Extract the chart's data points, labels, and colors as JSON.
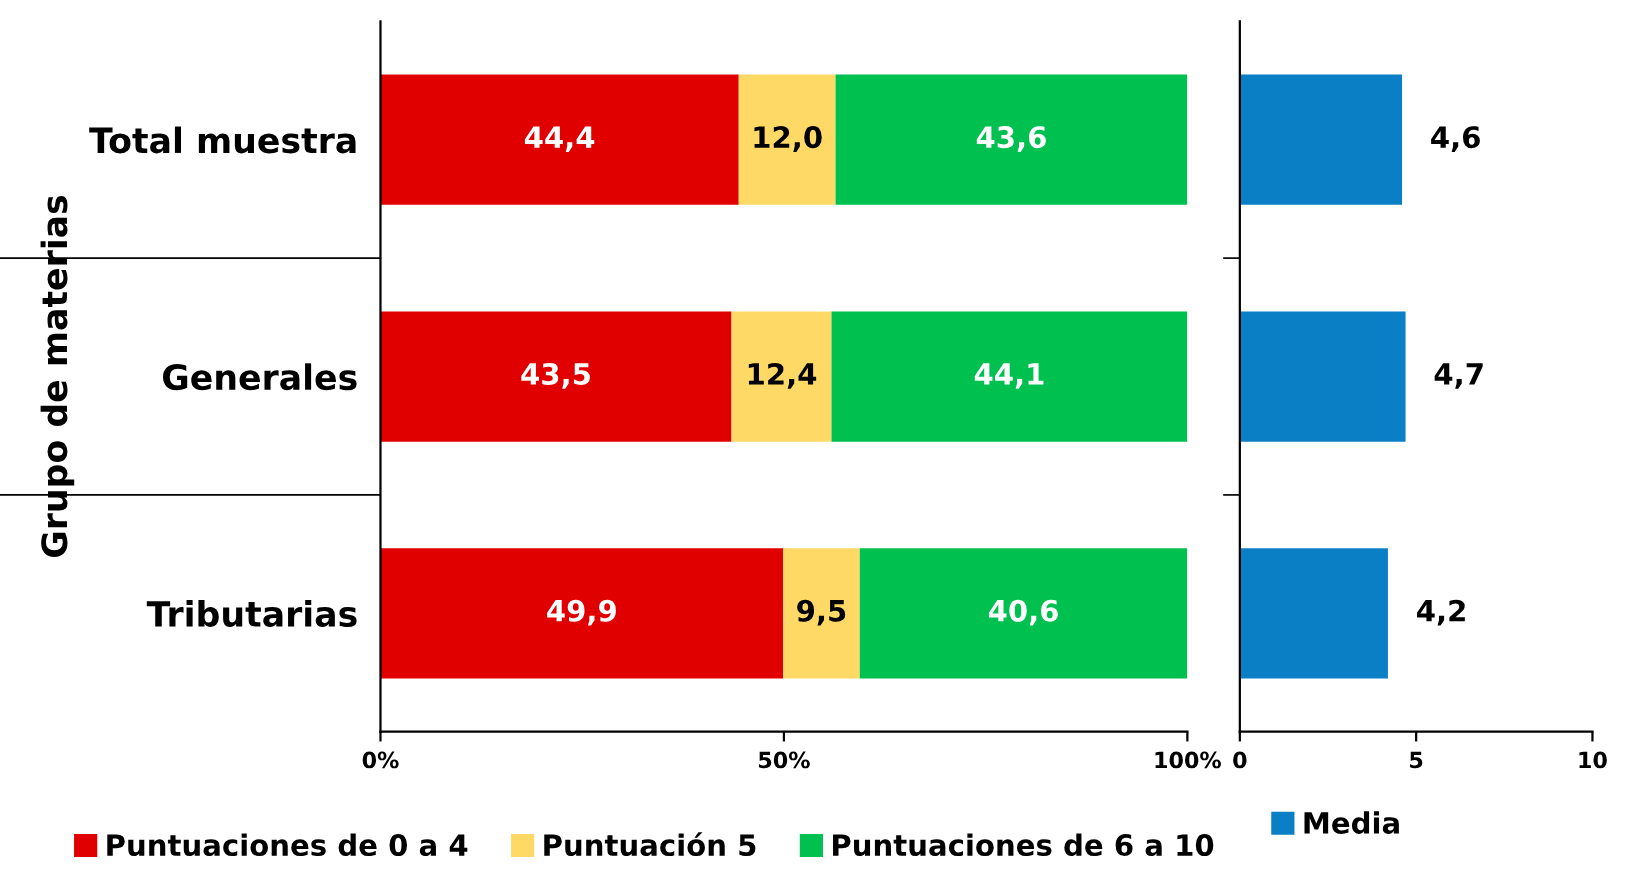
{
  "chart_data": [
    {
      "type": "bar",
      "orientation": "horizontal",
      "stacked": true,
      "ylabel": "Grupo de materias",
      "categories": [
        "Total muestra",
        "Generales",
        "Tributarias"
      ],
      "series": [
        {
          "name": "Puntuaciones de 0 a 4",
          "color": "#e00000",
          "values": [
            44.4,
            43.5,
            49.9
          ],
          "value_labels": [
            "44,4",
            "43,5",
            "49,9"
          ]
        },
        {
          "name": "Puntuación 5",
          "color": "#ffd966",
          "values": [
            12.0,
            12.4,
            9.5
          ],
          "value_labels": [
            "12,0",
            "12,4",
            "9,5"
          ]
        },
        {
          "name": "Puntuaciones de 6 a 10",
          "color": "#00c050",
          "values": [
            43.6,
            44.1,
            40.6
          ],
          "value_labels": [
            "43,6",
            "44,1",
            "40,6"
          ]
        }
      ],
      "xlim": [
        0,
        100
      ],
      "xticks": [
        {
          "value": 0,
          "label": "0%"
        },
        {
          "value": 50,
          "label": "50%"
        },
        {
          "value": 100,
          "label": "100%"
        }
      ],
      "legend": "bottom",
      "grid": false
    },
    {
      "type": "bar",
      "orientation": "horizontal",
      "categories": [
        null,
        null,
        null
      ],
      "series": [
        {
          "name": "Media",
          "color": "#0a7fc6",
          "values": [
            4.6,
            4.7,
            4.2
          ],
          "value_labels": [
            "4,6",
            "4,7",
            "4,2"
          ]
        }
      ],
      "xlim": [
        0,
        10
      ],
      "xticks": [
        0,
        5,
        10
      ],
      "legend": "bottom",
      "grid": false
    }
  ]
}
